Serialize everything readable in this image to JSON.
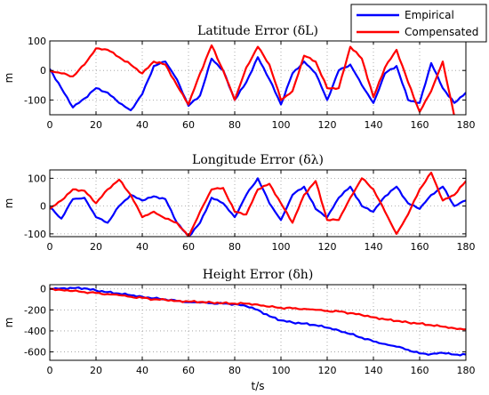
{
  "colors": {
    "empirical": "#0000ff",
    "compensated": "#ff0000"
  },
  "legend": {
    "placement": "top-right",
    "items": [
      "Empirical",
      "Compensated"
    ]
  },
  "chart_data": [
    {
      "type": "line",
      "title": "Latitude Error (δL)",
      "xlabel": "",
      "ylabel": "m",
      "xlim": [
        0,
        180
      ],
      "ylim": [
        -150,
        100
      ],
      "xticks": [
        0,
        20,
        40,
        60,
        80,
        100,
        120,
        140,
        160,
        180
      ],
      "yticks": [
        100,
        0,
        -100
      ],
      "grid": true,
      "x": [
        0,
        5,
        10,
        15,
        20,
        25,
        30,
        35,
        40,
        45,
        50,
        55,
        60,
        65,
        70,
        75,
        80,
        85,
        90,
        95,
        100,
        105,
        110,
        115,
        120,
        125,
        130,
        135,
        140,
        145,
        150,
        155,
        160,
        165,
        170,
        175,
        180
      ],
      "series": [
        {
          "name": "Empirical",
          "values": [
            5,
            -60,
            -125,
            -95,
            -60,
            -75,
            -110,
            -135,
            -80,
            15,
            30,
            -30,
            -120,
            -85,
            40,
            0,
            -100,
            -40,
            45,
            -30,
            -115,
            -10,
            30,
            -10,
            -100,
            0,
            20,
            -50,
            -110,
            -10,
            15,
            -100,
            -110,
            25,
            -60,
            -110,
            -75
          ]
        },
        {
          "name": "Compensated",
          "values": [
            0,
            -10,
            -20,
            20,
            75,
            70,
            45,
            20,
            -10,
            30,
            20,
            -50,
            -115,
            -10,
            85,
            0,
            -100,
            10,
            80,
            20,
            -100,
            -70,
            50,
            30,
            -60,
            -60,
            80,
            40,
            -90,
            10,
            70,
            -40,
            -140,
            -70,
            30,
            -155,
            -165
          ]
        }
      ]
    },
    {
      "type": "line",
      "title": "Longitude Error (δλ)",
      "xlabel": "",
      "ylabel": "m",
      "xlim": [
        0,
        180
      ],
      "ylim": [
        -110,
        130
      ],
      "xticks": [
        0,
        20,
        40,
        60,
        80,
        100,
        120,
        140,
        160,
        180
      ],
      "yticks": [
        100,
        0,
        -100
      ],
      "grid": true,
      "x": [
        0,
        5,
        10,
        15,
        20,
        25,
        30,
        35,
        40,
        45,
        50,
        55,
        60,
        65,
        70,
        75,
        80,
        85,
        90,
        95,
        100,
        105,
        110,
        115,
        120,
        125,
        130,
        135,
        140,
        145,
        150,
        155,
        160,
        165,
        170,
        175,
        180
      ],
      "series": [
        {
          "name": "Empirical",
          "values": [
            -5,
            -45,
            25,
            30,
            -40,
            -60,
            0,
            40,
            20,
            35,
            25,
            -60,
            -110,
            -60,
            30,
            10,
            -40,
            40,
            100,
            10,
            -50,
            40,
            70,
            -10,
            -40,
            30,
            70,
            0,
            -20,
            35,
            70,
            10,
            -10,
            40,
            70,
            0,
            20
          ]
        },
        {
          "name": "Compensated",
          "values": [
            -10,
            20,
            60,
            55,
            10,
            60,
            95,
            40,
            -40,
            -20,
            -45,
            -60,
            -110,
            -20,
            60,
            65,
            -20,
            -30,
            60,
            80,
            10,
            -60,
            40,
            90,
            -50,
            -50,
            30,
            100,
            60,
            -20,
            -100,
            -30,
            60,
            120,
            20,
            40,
            90
          ]
        }
      ]
    },
    {
      "type": "line",
      "title": "Height Error (δh)",
      "xlabel": "t/s",
      "ylabel": "m",
      "xlim": [
        0,
        180
      ],
      "ylim": [
        -680,
        40
      ],
      "xticks": [
        0,
        20,
        40,
        60,
        80,
        100,
        120,
        140,
        160,
        180
      ],
      "yticks": [
        0,
        -200,
        -400,
        -600
      ],
      "grid": true,
      "x": [
        0,
        5,
        10,
        15,
        20,
        25,
        30,
        35,
        40,
        45,
        50,
        55,
        60,
        65,
        70,
        75,
        80,
        85,
        90,
        95,
        100,
        105,
        110,
        115,
        120,
        125,
        130,
        135,
        140,
        145,
        150,
        155,
        160,
        165,
        170,
        175,
        180
      ],
      "series": [
        {
          "name": "Empirical",
          "values": [
            0,
            5,
            8,
            5,
            -15,
            -30,
            -45,
            -60,
            -75,
            -90,
            -100,
            -115,
            -125,
            -130,
            -135,
            -140,
            -145,
            -165,
            -200,
            -260,
            -300,
            -320,
            -330,
            -345,
            -370,
            -395,
            -430,
            -465,
            -500,
            -525,
            -550,
            -580,
            -615,
            -620,
            -610,
            -625,
            -625
          ]
        },
        {
          "name": "Compensated",
          "values": [
            0,
            -10,
            -20,
            -30,
            -40,
            -50,
            -60,
            -75,
            -85,
            -100,
            -105,
            -115,
            -120,
            -125,
            -130,
            -135,
            -140,
            -140,
            -150,
            -170,
            -180,
            -185,
            -190,
            -200,
            -210,
            -215,
            -230,
            -250,
            -270,
            -290,
            -305,
            -320,
            -330,
            -345,
            -360,
            -375,
            -385
          ]
        }
      ]
    }
  ]
}
